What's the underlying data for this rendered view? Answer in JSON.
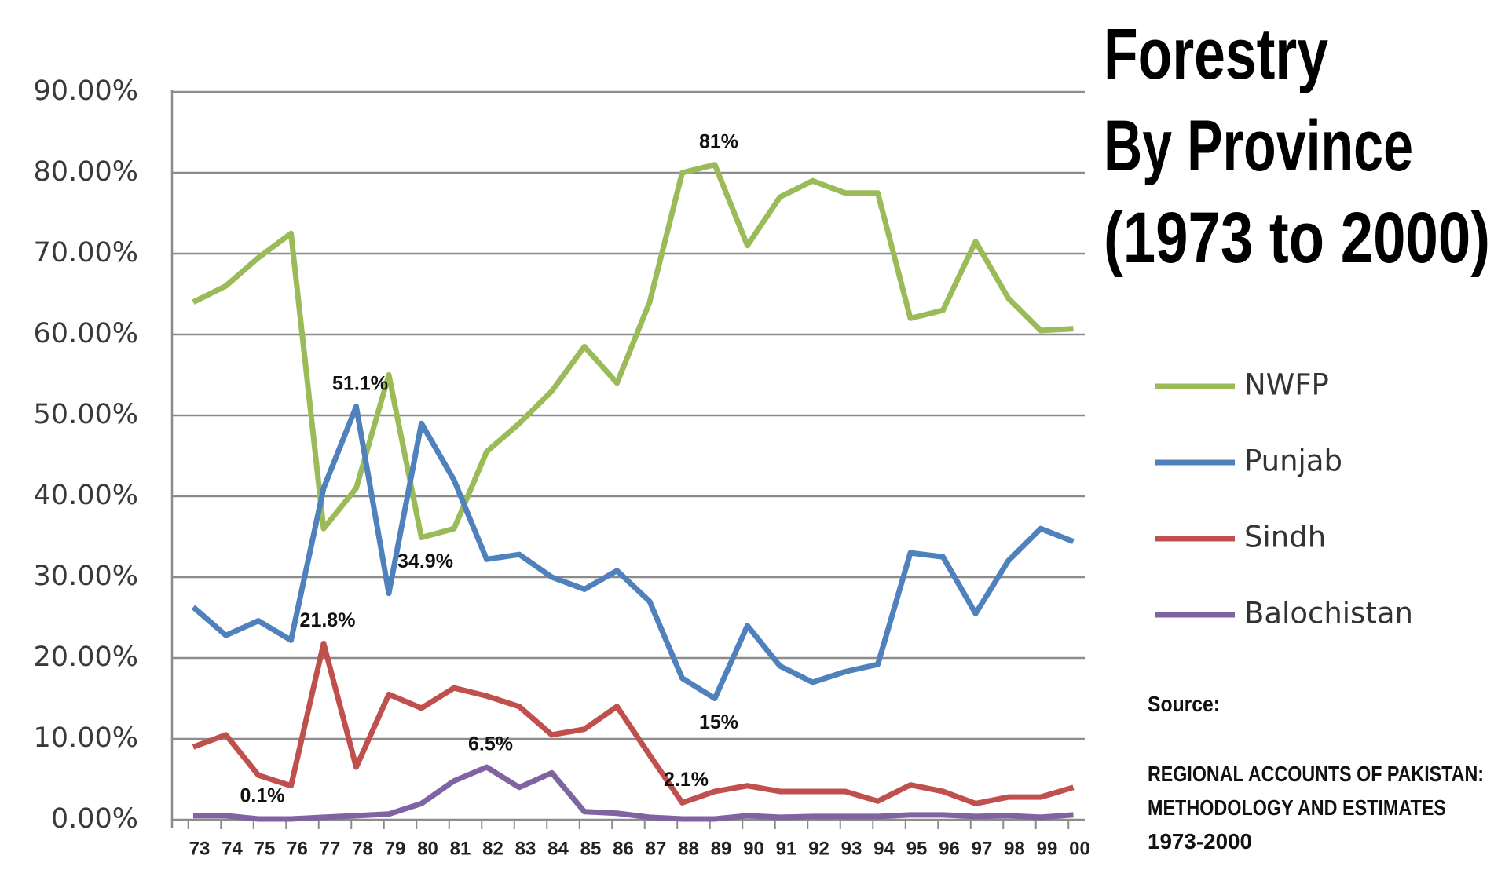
{
  "chart_data": {
    "type": "line",
    "title": [
      "Forestry",
      "By Province",
      "(1973 to 2000)"
    ],
    "categories": [
      "73",
      "74",
      "75",
      "76",
      "77",
      "78",
      "79",
      "80",
      "81",
      "82",
      "83",
      "84",
      "85",
      "86",
      "87",
      "88",
      "89",
      "90",
      "91",
      "92",
      "93",
      "94",
      "95",
      "96",
      "97",
      "98",
      "99",
      "00"
    ],
    "series": [
      {
        "name": "NWFP",
        "color": "#9bbb59",
        "values": [
          64,
          66,
          69.5,
          72.5,
          36,
          41,
          55,
          34.9,
          36,
          45.5,
          49,
          53,
          58.5,
          54,
          64,
          80,
          81,
          71,
          77,
          79,
          77.5,
          77.5,
          62,
          63,
          71.5,
          64.5,
          60.5,
          60.7
        ],
        "value_labels": [
          null,
          null,
          null,
          null,
          null,
          null,
          null,
          "34.9%",
          null,
          null,
          null,
          null,
          null,
          null,
          null,
          null,
          "81%",
          null,
          null,
          null,
          null,
          null,
          null,
          null,
          null,
          null,
          null,
          null
        ]
      },
      {
        "name": "Punjab",
        "color": "#4f81bd",
        "values": [
          26.3,
          22.8,
          24.6,
          22.2,
          41,
          51.1,
          28,
          49,
          42,
          32.2,
          32.8,
          30,
          28.5,
          30.8,
          27,
          17.5,
          15,
          24,
          19,
          17,
          18.3,
          19.2,
          33,
          32.5,
          25.5,
          32,
          36,
          34.4
        ],
        "value_labels": [
          null,
          null,
          null,
          null,
          null,
          "51.1%",
          null,
          null,
          null,
          null,
          null,
          null,
          null,
          null,
          null,
          null,
          "15%",
          null,
          null,
          null,
          null,
          null,
          null,
          null,
          null,
          null,
          null,
          null
        ]
      },
      {
        "name": "Sindh",
        "color": "#c0504d",
        "values": [
          9,
          10.5,
          5.5,
          4.2,
          21.8,
          6.5,
          15.5,
          13.8,
          16.3,
          15.3,
          14,
          10.5,
          11.2,
          14,
          8,
          2.1,
          3.5,
          4.2,
          3.5,
          3.5,
          3.5,
          2.3,
          4.3,
          3.5,
          2,
          2.8,
          2.8,
          4
        ],
        "value_labels": [
          null,
          null,
          null,
          null,
          "21.8%",
          null,
          null,
          null,
          null,
          null,
          null,
          null,
          null,
          null,
          null,
          "2.1%",
          null,
          null,
          null,
          null,
          null,
          null,
          null,
          null,
          null,
          null,
          null,
          null
        ]
      },
      {
        "name": "Balochistan",
        "color": "#8064a2",
        "values": [
          0.5,
          0.5,
          0.1,
          0.1,
          0.3,
          0.5,
          0.7,
          2,
          4.8,
          6.5,
          4,
          5.8,
          1,
          0.8,
          0.3,
          0.1,
          0.1,
          0.5,
          0.3,
          0.4,
          0.4,
          0.4,
          0.6,
          0.6,
          0.4,
          0.5,
          0.3,
          0.6
        ],
        "value_labels": [
          null,
          null,
          "0.1%",
          null,
          null,
          null,
          null,
          null,
          null,
          "6.5%",
          null,
          null,
          null,
          null,
          null,
          null,
          null,
          null,
          null,
          null,
          null,
          null,
          null,
          null,
          null,
          null,
          null,
          null
        ]
      }
    ],
    "ylim": [
      0,
      90
    ],
    "yticks": [
      {
        "value": 0,
        "label": "0.00%"
      },
      {
        "value": 10,
        "label": "10.00%"
      },
      {
        "value": 20,
        "label": "20.00%"
      },
      {
        "value": 30,
        "label": "30.00%"
      },
      {
        "value": 40,
        "label": "40.00%"
      },
      {
        "value": 50,
        "label": "50.00%"
      },
      {
        "value": 60,
        "label": "60.00%"
      },
      {
        "value": 70,
        "label": "70.00%"
      },
      {
        "value": 80,
        "label": "80.00%"
      },
      {
        "value": 90,
        "label": "90.00%"
      }
    ],
    "grid": true,
    "legend": "right",
    "source_label": "Source:",
    "source_lines": [
      "REGIONAL ACCOUNTS OF PAKISTAN:",
      "METHODOLOGY AND ESTIMATES",
      "1973-2000"
    ]
  }
}
